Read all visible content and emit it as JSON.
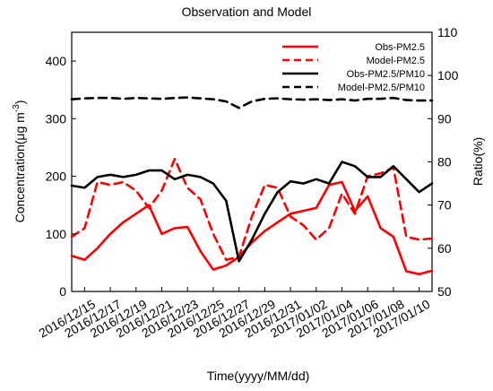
{
  "chart_data": {
    "type": "line",
    "title": "Observation and Model",
    "xlabel": "Time(yyyy/MM/dd)",
    "ylabel_left": "Concentration(μg m",
    "ylabel_left_sup": "-3",
    "ylabel_left_close": ")",
    "ylabel_right": "Ratio(%)",
    "x_start": "2016/12/14",
    "x_ticks": [
      "2016/12/15",
      "2016/12/17",
      "2016/12/19",
      "2016/12/21",
      "2016/12/23",
      "2016/12/25",
      "2016/12/27",
      "2016/12/29",
      "2016/12/31",
      "2017/01/02",
      "2017/01/04",
      "2017/01/06",
      "2017/01/08",
      "2017/01/10"
    ],
    "xlim": [
      "2016/12/14",
      "2017/01/11"
    ],
    "ylim_left": [
      0,
      450
    ],
    "yticks_left": [
      "0",
      "100",
      "200",
      "300",
      "400"
    ],
    "ylim_right": [
      50,
      110
    ],
    "yticks_right": [
      "50",
      "60",
      "70",
      "80",
      "90",
      "100",
      "110"
    ],
    "legend_position": "top-right",
    "series": [
      {
        "name": "Obs-PM2.5",
        "axis": "left",
        "color": "#ff0000",
        "dash": "solid",
        "x": [
          "2016/12/14",
          "2016/12/15",
          "2016/12/16",
          "2016/12/17",
          "2016/12/18",
          "2016/12/19",
          "2016/12/20",
          "2016/12/21",
          "2016/12/22",
          "2016/12/23",
          "2016/12/24",
          "2016/12/25",
          "2016/12/26",
          "2016/12/27",
          "2016/12/28",
          "2016/12/29",
          "2016/12/30",
          "2016/12/31",
          "2017/01/01",
          "2017/01/02",
          "2017/01/03",
          "2017/01/04",
          "2017/01/05",
          "2017/01/06",
          "2017/01/07",
          "2017/01/08",
          "2017/01/09",
          "2017/01/10",
          "2017/01/11"
        ],
        "values": [
          62,
          55,
          75,
          100,
          120,
          135,
          150,
          100,
          110,
          112,
          70,
          38,
          45,
          60,
          85,
          105,
          120,
          135,
          140,
          145,
          185,
          190,
          140,
          165,
          110,
          95,
          35,
          30,
          36
        ]
      },
      {
        "name": "Model-PM2.5",
        "axis": "left",
        "color": "#ff0000",
        "dash": "dashed",
        "x": [
          "2016/12/14",
          "2016/12/15",
          "2016/12/16",
          "2016/12/17",
          "2016/12/18",
          "2016/12/19",
          "2016/12/20",
          "2016/12/21",
          "2016/12/22",
          "2016/12/23",
          "2016/12/24",
          "2016/12/25",
          "2016/12/26",
          "2016/12/27",
          "2016/12/28",
          "2016/12/29",
          "2016/12/30",
          "2016/12/31",
          "2017/01/01",
          "2017/01/02",
          "2017/01/03",
          "2017/01/04",
          "2017/01/05",
          "2017/01/06",
          "2017/01/07",
          "2017/01/08",
          "2017/01/09",
          "2017/01/10",
          "2017/01/11"
        ],
        "values": [
          95,
          110,
          190,
          185,
          190,
          175,
          145,
          175,
          230,
          180,
          160,
          100,
          55,
          60,
          130,
          185,
          180,
          130,
          115,
          90,
          110,
          170,
          135,
          200,
          205,
          215,
          95,
          90,
          92
        ]
      },
      {
        "name": "Obs-PM2.5/PM10",
        "axis": "right",
        "color": "#000000",
        "dash": "solid",
        "x": [
          "2016/12/14",
          "2016/12/15",
          "2016/12/16",
          "2016/12/17",
          "2016/12/18",
          "2016/12/19",
          "2016/12/20",
          "2016/12/21",
          "2016/12/22",
          "2016/12/23",
          "2016/12/24",
          "2016/12/25",
          "2016/12/26",
          "2016/12/27",
          "2016/12/28",
          "2016/12/29",
          "2016/12/30",
          "2016/12/31",
          "2017/01/01",
          "2017/01/02",
          "2017/01/03",
          "2017/01/04",
          "2017/01/05",
          "2017/01/06",
          "2017/01/07",
          "2017/01/08",
          "2017/01/09",
          "2017/01/10",
          "2017/01/11"
        ],
        "values": [
          74.5,
          74,
          76.5,
          77,
          76.5,
          77,
          78,
          78,
          76,
          77,
          76.5,
          75,
          71,
          57,
          62,
          68,
          73,
          75.5,
          75,
          76,
          75,
          80,
          79,
          76.5,
          76.5,
          79,
          76,
          73,
          75
        ]
      },
      {
        "name": "Model-PM2.5/PM10",
        "axis": "right",
        "color": "#000000",
        "dash": "dashed",
        "x": [
          "2016/12/14",
          "2016/12/15",
          "2016/12/16",
          "2016/12/17",
          "2016/12/18",
          "2016/12/19",
          "2016/12/20",
          "2016/12/21",
          "2016/12/22",
          "2016/12/23",
          "2016/12/24",
          "2016/12/25",
          "2016/12/26",
          "2016/12/27",
          "2016/12/28",
          "2016/12/29",
          "2016/12/30",
          "2016/12/31",
          "2017/01/01",
          "2017/01/02",
          "2017/01/03",
          "2017/01/04",
          "2017/01/05",
          "2017/01/06",
          "2017/01/07",
          "2017/01/08",
          "2017/01/09",
          "2017/01/10",
          "2017/01/11"
        ],
        "values": [
          94.5,
          94.7,
          94.8,
          94.8,
          94.6,
          94.8,
          94.7,
          94.6,
          94.8,
          94.9,
          94.7,
          94.5,
          94,
          92.5,
          94,
          94.6,
          94.7,
          94.5,
          94.4,
          94.5,
          94.3,
          94.5,
          94.2,
          94.6,
          94.6,
          94.8,
          94.3,
          94.2,
          94.2
        ]
      }
    ]
  }
}
